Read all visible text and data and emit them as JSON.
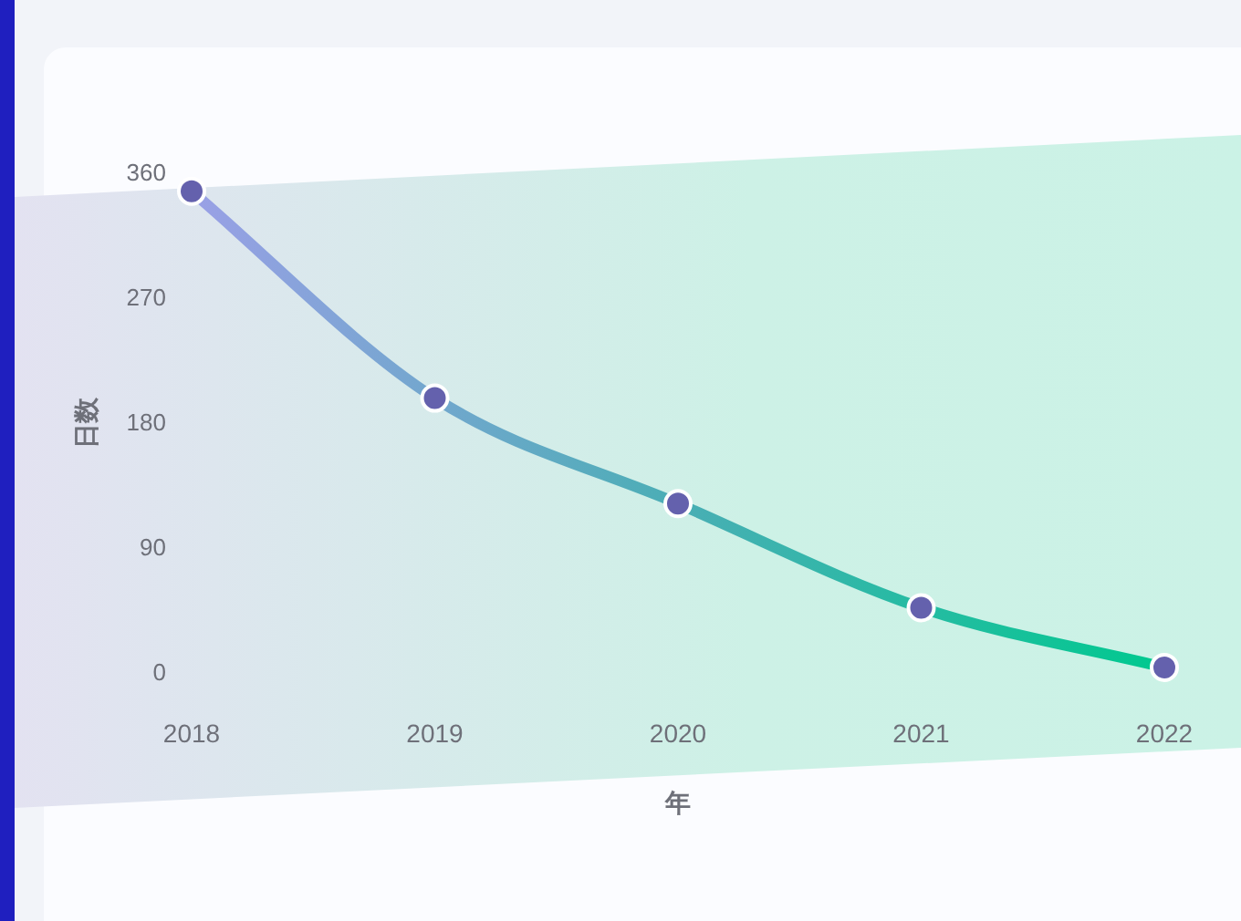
{
  "chart_data": {
    "type": "line",
    "xlabel": "年",
    "ylabel": "日数",
    "categories": [
      "2018",
      "2019",
      "2020",
      "2021",
      "2022"
    ],
    "series": [
      {
        "color": "#4aaeb5",
        "values": [
          347,
          198,
          122,
          47,
          4
        ]
      }
    ],
    "ylim": [
      0,
      360
    ],
    "yticks": [
      0,
      90,
      180,
      270,
      360
    ],
    "marker": "circle",
    "line_style": "solid",
    "grid": false
  }
}
